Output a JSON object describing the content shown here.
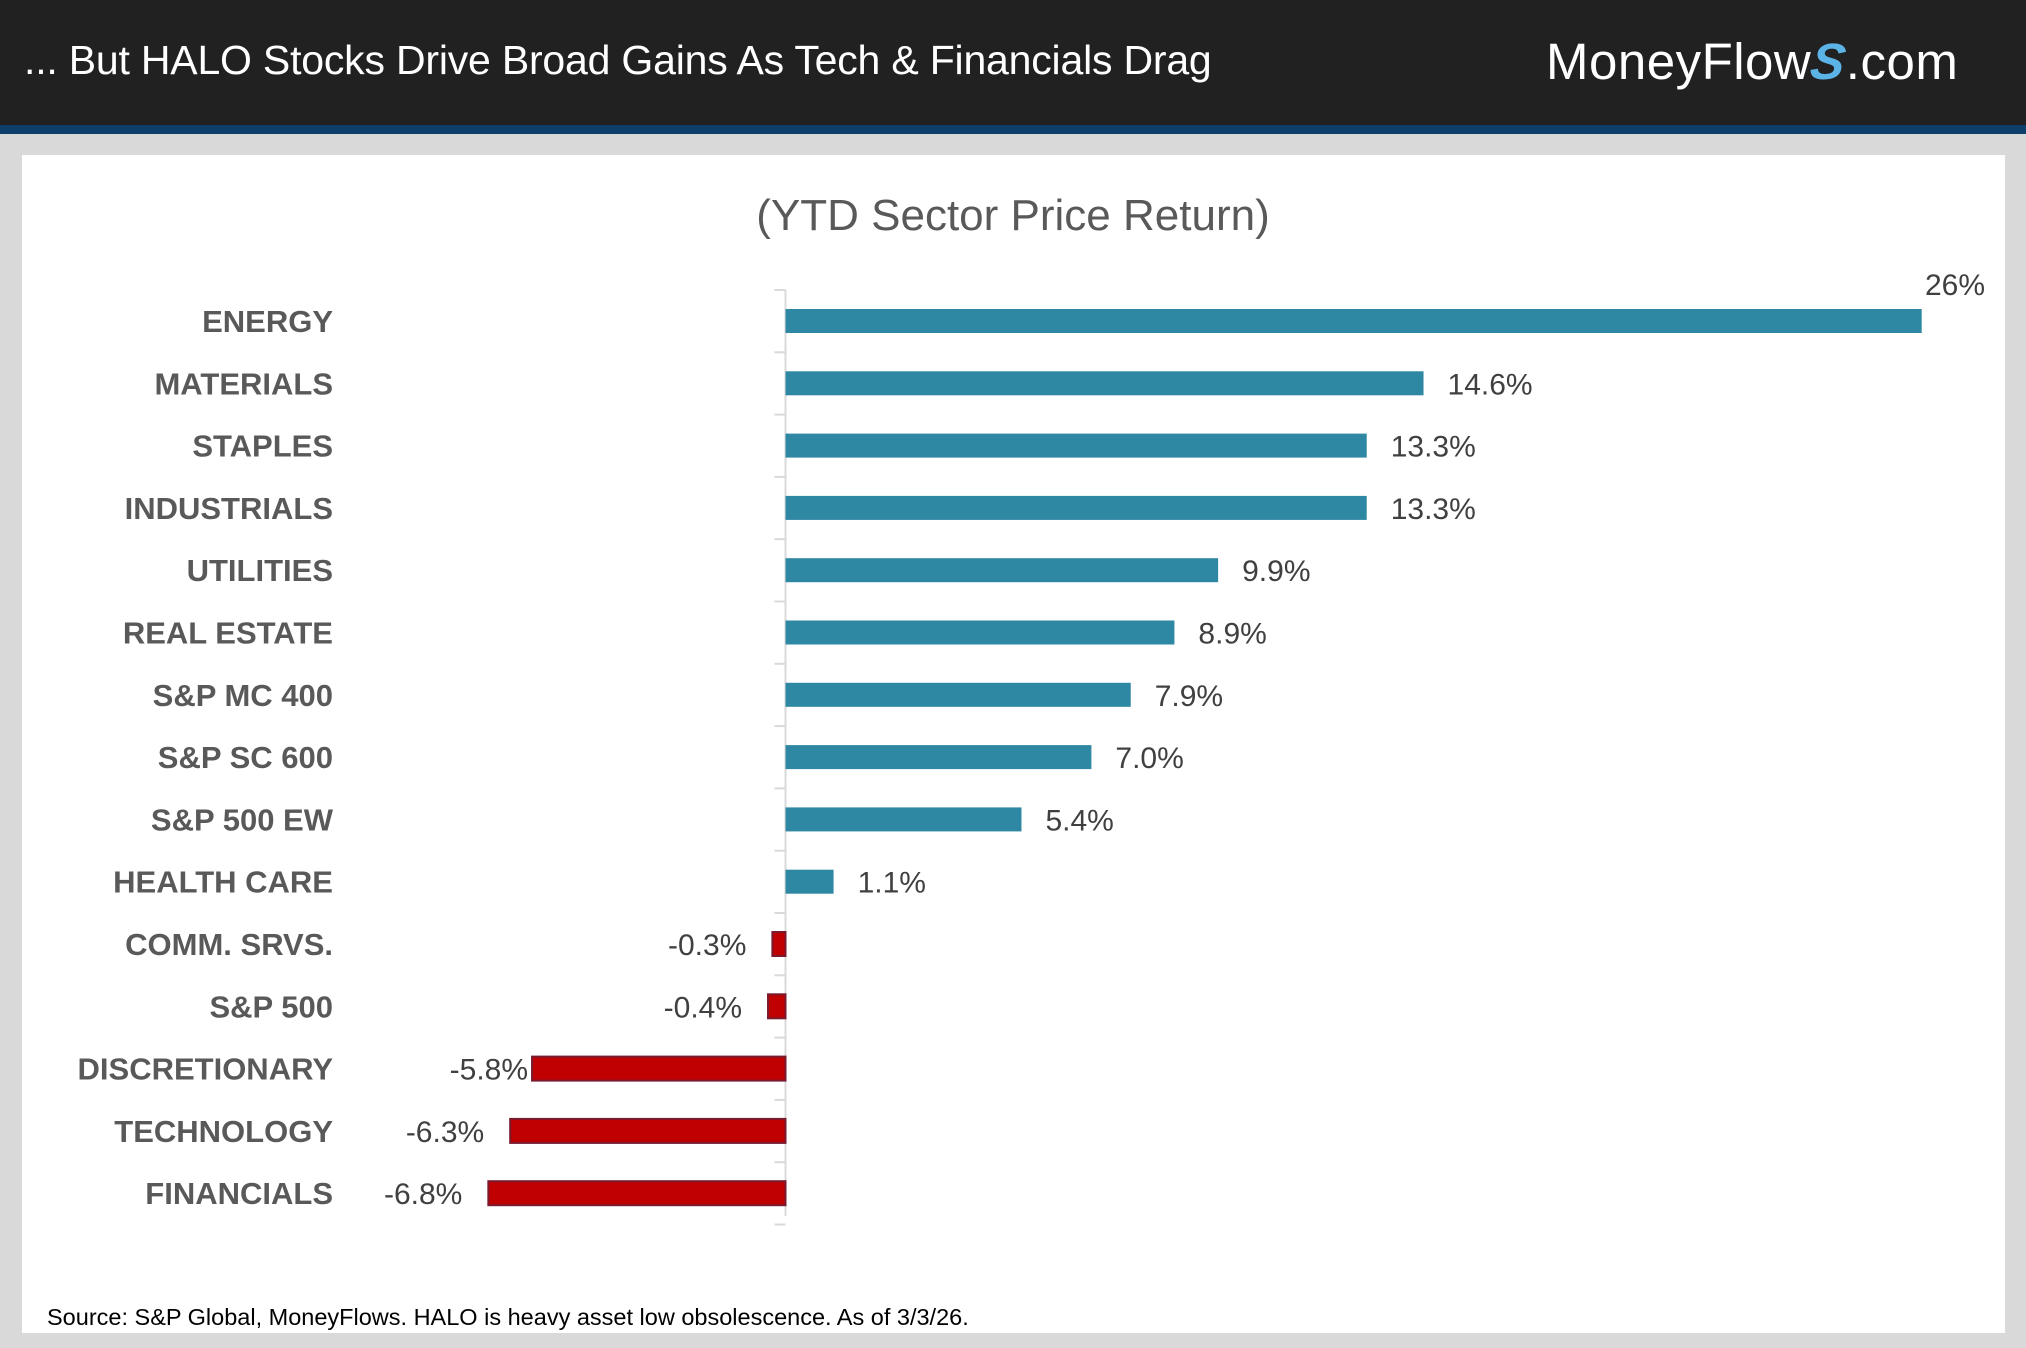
{
  "header": {
    "title": "... But HALO Stocks Drive Broad Gains As Tech & Financials Drag",
    "logo": {
      "text_before": "MoneyFlow",
      "stylized_letter": "S",
      "text_after": ".com"
    }
  },
  "colors": {
    "header_bg": "#212121",
    "header_stripe": "#0d3f6a",
    "positive_bar": "#2e87a3",
    "negative_bar": "#c00000",
    "negative_bar_border": "#7a1a2e",
    "axis": "#d9d9d9",
    "category_text": "#595959",
    "value_text": "#404040"
  },
  "chart_data": {
    "type": "bar",
    "orientation": "horizontal",
    "title": "(YTD Sector Price Return)",
    "xlabel": "",
    "ylabel": "",
    "grid": false,
    "legend": "none",
    "xlim": [
      -6.8,
      26
    ],
    "categories": [
      "ENERGY",
      "MATERIALS",
      "STAPLES",
      "INDUSTRIALS",
      "UTILITIES",
      "REAL ESTATE",
      "S&P MC 400",
      "S&P SC 600",
      "S&P 500 EW",
      "HEALTH CARE",
      "COMM. SRVS.",
      "S&P 500",
      "DISCRETIONARY",
      "TECHNOLOGY",
      "FINANCIALS"
    ],
    "values": [
      26,
      14.6,
      13.3,
      13.3,
      9.9,
      8.9,
      7.9,
      7.0,
      5.4,
      1.1,
      -0.3,
      -0.4,
      -5.8,
      -6.3,
      -6.8
    ],
    "data_labels": [
      "26%",
      "14.6%",
      "13.3%",
      "13.3%",
      "9.9%",
      "8.9%",
      "7.9%",
      "7.0%",
      "5.4%",
      "1.1%",
      "-0.3%",
      "-0.4%",
      "-5.8%",
      "-6.3%",
      "-6.8%"
    ],
    "unit": "%"
  },
  "footer": {
    "source": "Source: S&P Global, MoneyFlows. HALO is heavy asset low obsolescence. As of  3/3/26."
  }
}
